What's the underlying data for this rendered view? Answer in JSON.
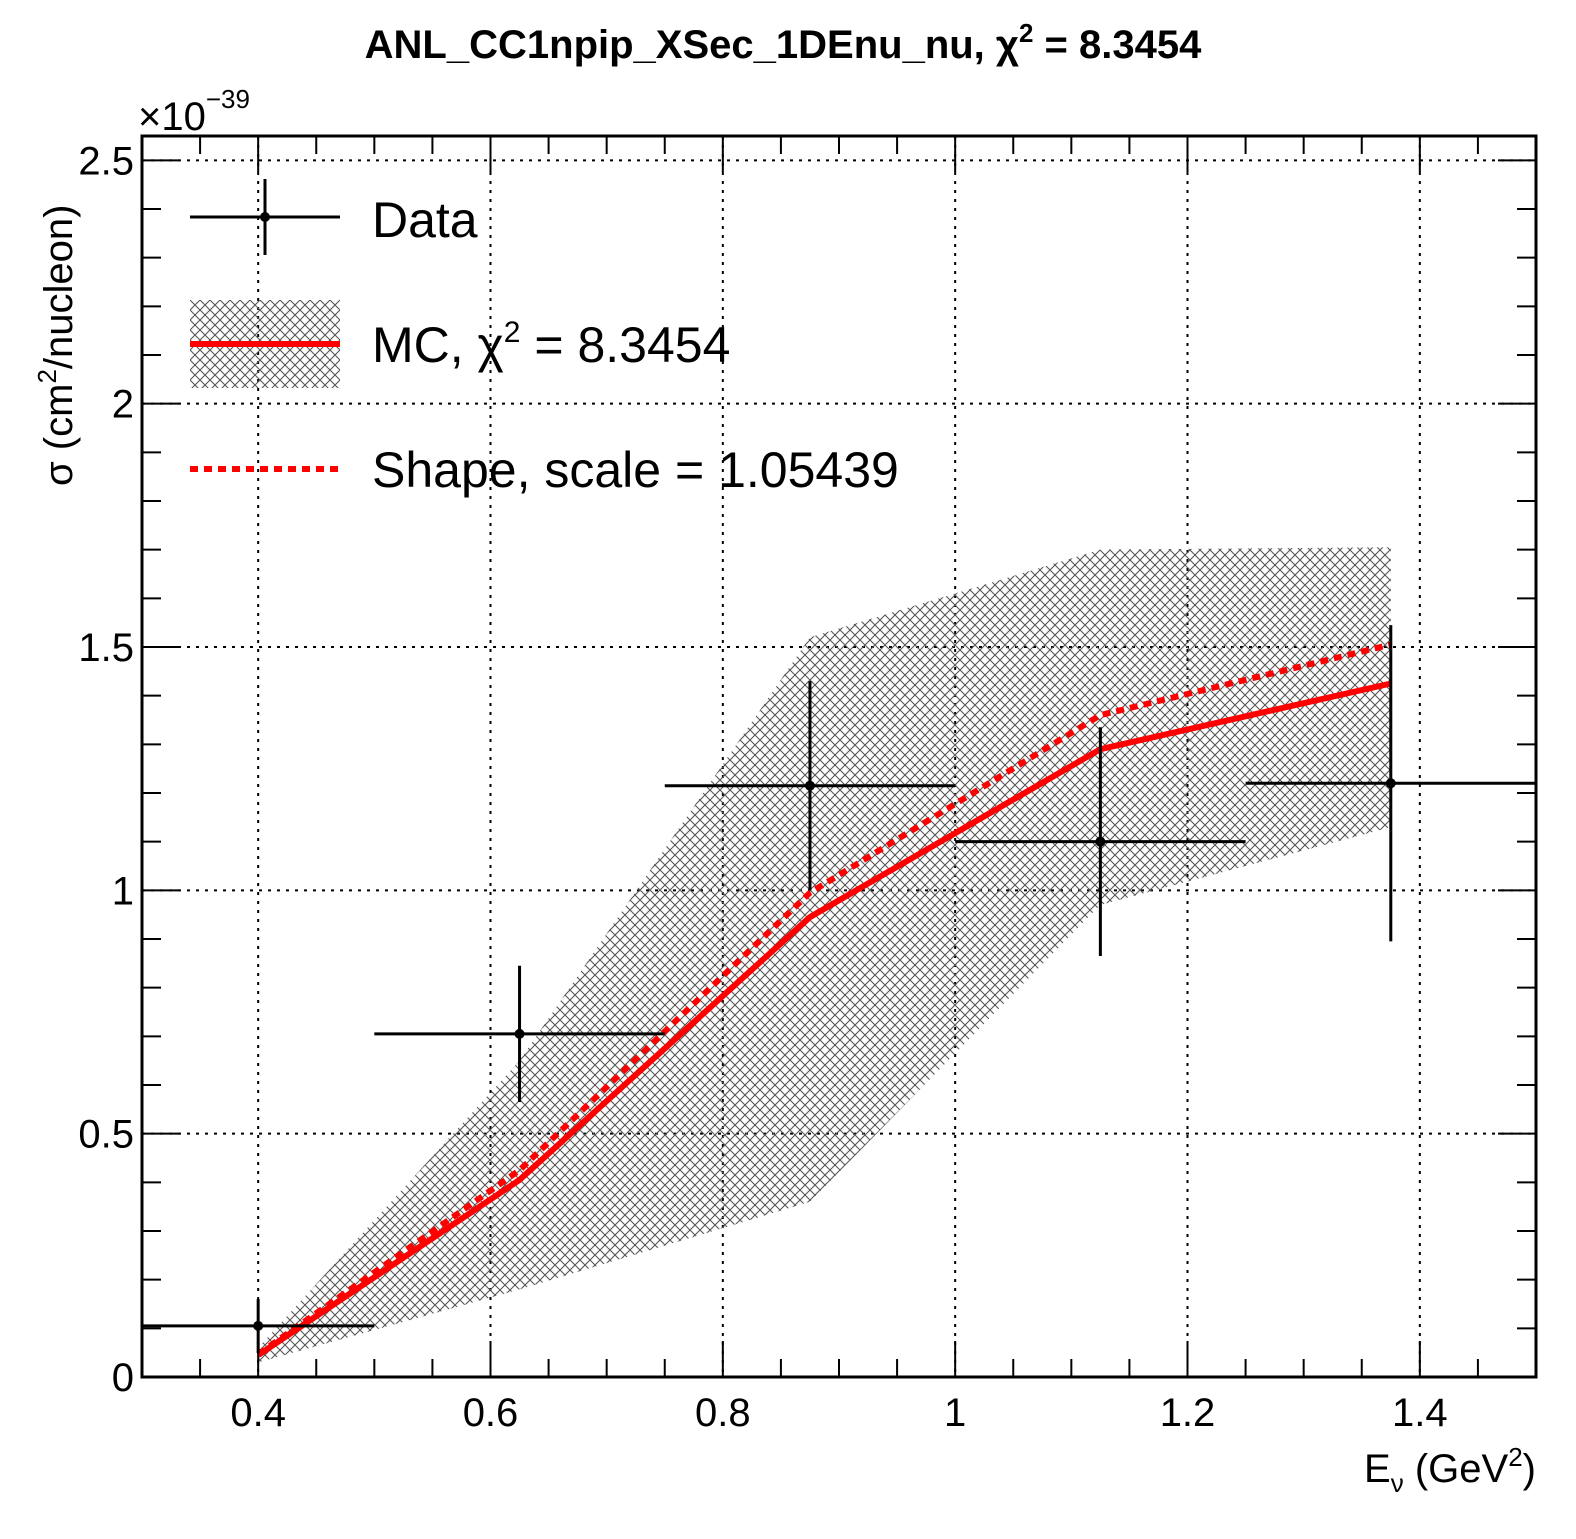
{
  "chart_data": {
    "type": "line",
    "title": "ANL_CC1npip_XSec_1DEnu_nu, χ",
    "title_sup": "2",
    "title_tail": " = 8.3454",
    "xlabel": "E",
    "xlabel_sub": "ν",
    "xlabel_tail": " (GeV",
    "xlabel_sup": "2",
    "xlabel_close": ")",
    "ylabel": "σ (cm",
    "ylabel_sup": "2",
    "ylabel_tail": "/nucleon)",
    "y_exponent_prefix": "×10",
    "y_exponent": "−39",
    "xlim": [
      0.3,
      1.5
    ],
    "ylim": [
      0,
      2.55
    ],
    "x_major_ticks": [
      0.4,
      0.6,
      0.8,
      1.0,
      1.2,
      1.4
    ],
    "x_tick_labels": [
      "0.4",
      "0.6",
      "0.8",
      "1",
      "1.2",
      "1.4"
    ],
    "y_major_ticks": [
      0,
      0.5,
      1.0,
      1.5,
      2.0,
      2.5
    ],
    "y_tick_labels": [
      "0",
      "0.5",
      "1",
      "1.5",
      "2",
      "2.5"
    ],
    "grid": true,
    "legend_position": "top-left",
    "colors": {
      "data": "#000000",
      "mc": "#ff0000",
      "band": "#555555"
    },
    "series": [
      {
        "name": "Data",
        "style": "points-with-errors",
        "points": [
          {
            "x": 0.4,
            "xlo": 0.3,
            "xhi": 0.5,
            "y": 0.105,
            "ylo": 0.05,
            "yhi": 0.16
          },
          {
            "x": 0.625,
            "xlo": 0.5,
            "xhi": 0.75,
            "y": 0.705,
            "ylo": 0.565,
            "yhi": 0.845
          },
          {
            "x": 0.875,
            "xlo": 0.75,
            "xhi": 1.0,
            "y": 1.215,
            "ylo": 1.0,
            "yhi": 1.43
          },
          {
            "x": 1.125,
            "xlo": 1.0,
            "xhi": 1.25,
            "y": 1.1,
            "ylo": 0.865,
            "yhi": 1.335
          },
          {
            "x": 1.375,
            "xlo": 1.25,
            "xhi": 1.5,
            "y": 1.22,
            "ylo": 0.895,
            "yhi": 1.545
          }
        ]
      },
      {
        "name": "MC, χ",
        "name_sup": "2",
        "name_tail": " = 8.3454",
        "style": "solid-line-with-band",
        "x": [
          0.4,
          0.625,
          0.875,
          1.125,
          1.375
        ],
        "y": [
          0.045,
          0.405,
          0.945,
          1.29,
          1.425
        ],
        "band_lo": [
          0.03,
          0.18,
          0.36,
          0.97,
          1.13
        ],
        "band_hi": [
          0.06,
          0.65,
          1.52,
          1.7,
          1.705
        ]
      },
      {
        "name": "Shape, scale = 1.05439",
        "style": "dashed-line",
        "x": [
          0.4,
          0.625,
          0.875,
          1.125,
          1.375
        ],
        "y": [
          0.047,
          0.425,
          0.995,
          1.36,
          1.505
        ]
      }
    ]
  }
}
